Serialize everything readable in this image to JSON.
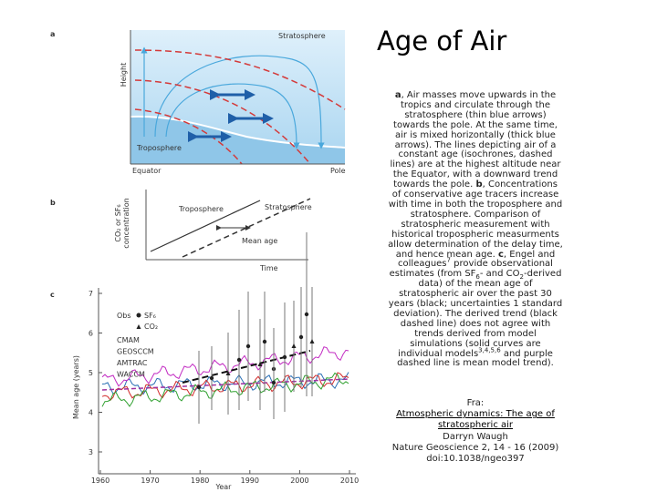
{
  "title": "Age of Air",
  "figure": {
    "panel_a": {
      "label": "a",
      "stratosphere": "Stratosphere",
      "height": "Height",
      "troposphere": "Troposphere",
      "equator": "Equator",
      "pole": "Pole"
    },
    "panel_b": {
      "label": "b",
      "y_label": [
        "CO₂ or SF₆",
        "concentration"
      ],
      "troposphere": "Troposphere",
      "stratosphere": "Stratosphere",
      "mean_age": "Mean age",
      "x_label": "Time"
    },
    "panel_c": {
      "label": "c",
      "y_label": "Mean age (years)",
      "x_label": "Year",
      "xticks": [
        1960,
        1970,
        1980,
        1990,
        2000,
        2010
      ],
      "yticks": [
        3,
        4,
        5,
        6,
        7
      ],
      "legend": {
        "obs": "Obs",
        "sf6": "SF₆",
        "co2": "CO₂",
        "models": [
          "CMAM",
          "GEOSCCM",
          "AMTRAC",
          "WACCM"
        ]
      }
    }
  },
  "caption": [
    {
      "text": "a",
      "format": "bold"
    },
    {
      "text": ", Air masses move upwards in the tropics and circulate through the stratosphere (thin blue arrows) towards the pole. At the same time, air is mixed horizontally (thick blue arrows). The lines depicting air of a constant age (isochrones, dashed lines) are at the highest altitude near the Equator, with a downward trend towards the pole. "
    },
    {
      "text": "b",
      "format": "bold"
    },
    {
      "text": ", Concentrations of conservative age tracers increase with time in both the troposphere and stratosphere. Comparison of stratospheric measurement with historical tropospheric measurments allow determination of the delay time, and hence mean age. "
    },
    {
      "text": "c",
      "format": "bold"
    },
    {
      "text": ", Engel and colleagues"
    },
    {
      "text": "7",
      "format": "sup"
    },
    {
      "text": " provide observational estimates (from SF"
    },
    {
      "text": "6",
      "format": "sub"
    },
    {
      "text": "- and CO"
    },
    {
      "text": "2",
      "format": "sub"
    },
    {
      "text": "-derived data) of the mean age of stratospheric air over the past 30 years (black; uncertainties 1 standard deviation). The derived trend (black dashed line) does not agree with trends derived from model simulations (solid curves are individual models"
    },
    {
      "text": "3,4,5,6",
      "format": "sup"
    },
    {
      "text": " and purple dashed line is mean model trend)."
    }
  ],
  "source": {
    "prefix": "Fra:",
    "link": "Atmospheric dynamics: The age of stratospheric air",
    "author": "Darryn Waugh",
    "journal": "Nature Geoscience 2, 14 - 16 (2009)",
    "doi": "doi:10.1038/ngeo397"
  }
}
